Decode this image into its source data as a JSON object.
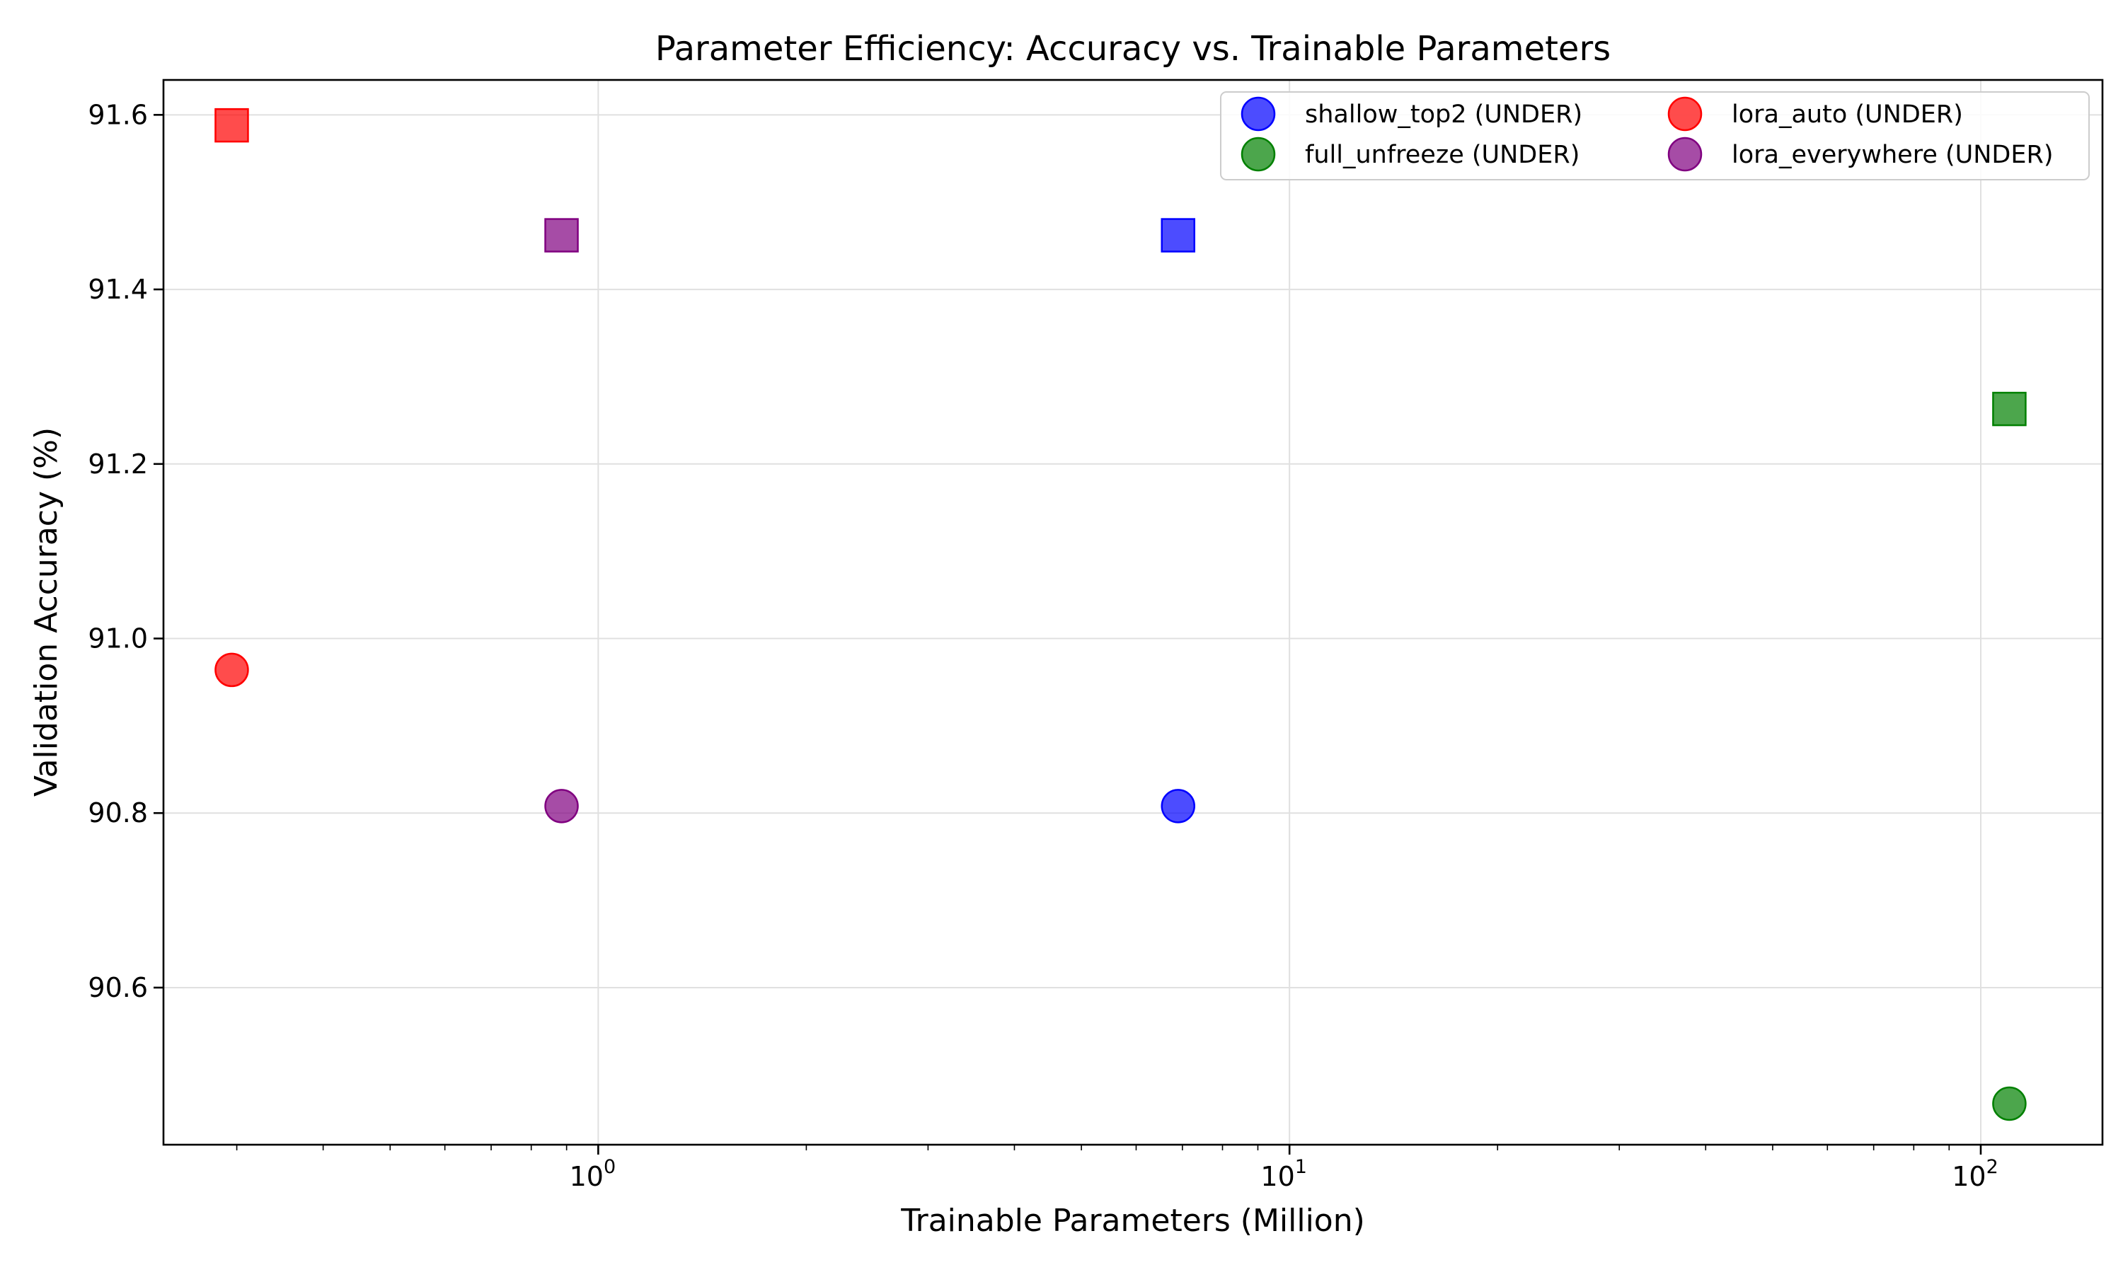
{
  "chart_data": {
    "type": "scatter",
    "title": "Parameter Efficiency: Accuracy vs. Trainable Parameters",
    "xlabel": "Trainable Parameters (Million)",
    "ylabel": "Validation Accuracy (%)",
    "xscale": "log",
    "xlim": [
      0.235,
      150
    ],
    "ylim": [
      90.42,
      91.64
    ],
    "x_ticks": [
      {
        "value": 1,
        "base": "10",
        "exp": "0"
      },
      {
        "value": 10,
        "base": "10",
        "exp": "1"
      },
      {
        "value": 100,
        "base": "10",
        "exp": "2"
      }
    ],
    "y_ticks": [
      {
        "value": 90.6,
        "label": "90.6"
      },
      {
        "value": 90.8,
        "label": "90.8"
      },
      {
        "value": 91.0,
        "label": "91.0"
      },
      {
        "value": 91.2,
        "label": "91.2"
      },
      {
        "value": 91.4,
        "label": "91.4"
      },
      {
        "value": 91.6,
        "label": "91.6"
      }
    ],
    "grid": true,
    "legend_position": "top-right",
    "legend_columns": 2,
    "marker_types": [
      "circle",
      "square"
    ],
    "series": [
      {
        "name": "shallow_top2 (UNDER)",
        "color": "#0000ff",
        "points": [
          {
            "x": 6.9,
            "y": 90.808,
            "marker": "circle"
          },
          {
            "x": 6.9,
            "y": 91.462,
            "marker": "square"
          }
        ]
      },
      {
        "name": "full_unfreeze (UNDER)",
        "color": "#008000",
        "points": [
          {
            "x": 110,
            "y": 90.467,
            "marker": "circle"
          },
          {
            "x": 110,
            "y": 91.263,
            "marker": "square"
          }
        ]
      },
      {
        "name": "lora_auto (UNDER)",
        "color": "#ff0000",
        "points": [
          {
            "x": 0.295,
            "y": 90.964,
            "marker": "circle"
          },
          {
            "x": 0.295,
            "y": 91.588,
            "marker": "square"
          }
        ]
      },
      {
        "name": "lora_everywhere (UNDER)",
        "color": "#800080",
        "points": [
          {
            "x": 0.885,
            "y": 90.808,
            "marker": "circle"
          },
          {
            "x": 0.885,
            "y": 91.462,
            "marker": "square"
          }
        ]
      }
    ]
  }
}
